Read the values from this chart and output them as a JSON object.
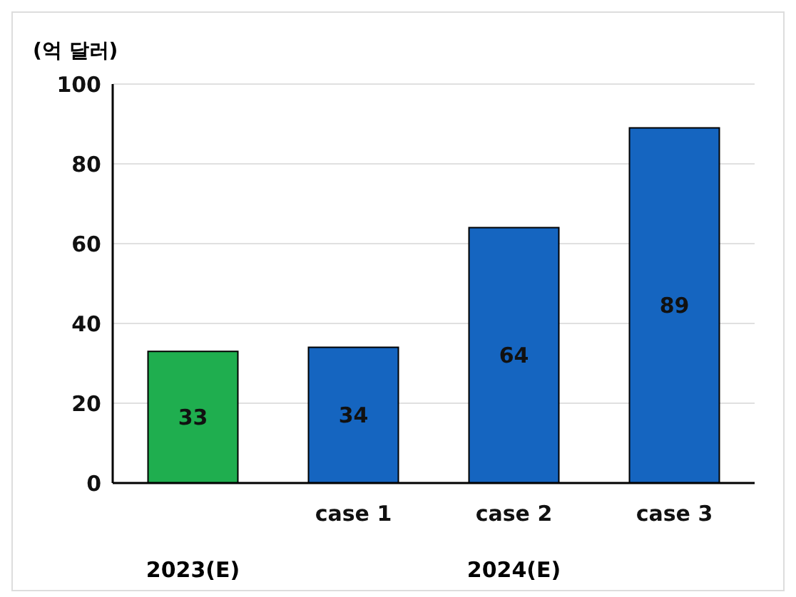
{
  "chart_data": {
    "type": "bar",
    "ylabel": "(억 달러)",
    "categories": [
      null,
      "case 1",
      "case 2",
      "case 3"
    ],
    "values": [
      33,
      34,
      64,
      89
    ],
    "colors": [
      "#1fae4f",
      "#1565c0",
      "#1565c0",
      "#1565c0"
    ],
    "ylim": [
      0,
      100
    ],
    "yticks": [
      0,
      20,
      40,
      60,
      80,
      100
    ],
    "grid": "y",
    "data_labels": true,
    "annotations": [
      "2023(E)",
      "2024(E)"
    ]
  }
}
